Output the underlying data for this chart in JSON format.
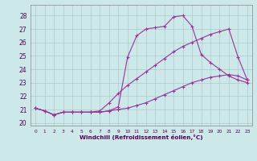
{
  "xlabel": "Windchill (Refroidissement éolien,°C)",
  "background_color": "#cce8e8",
  "grid_color": "#aacccc",
  "line_color": "#993399",
  "xlim": [
    -0.5,
    23.5
  ],
  "ylim": [
    19.8,
    28.8
  ],
  "yticks": [
    20,
    21,
    22,
    23,
    24,
    25,
    26,
    27,
    28
  ],
  "xticks": [
    0,
    1,
    2,
    3,
    4,
    5,
    6,
    7,
    8,
    9,
    10,
    11,
    12,
    13,
    14,
    15,
    16,
    17,
    18,
    19,
    20,
    21,
    22,
    23
  ],
  "series": [
    {
      "x": [
        0,
        1,
        2,
        3,
        4,
        5,
        6,
        7,
        8,
        9,
        10,
        11,
        12,
        13,
        14,
        15,
        16,
        17,
        18,
        19,
        20,
        21,
        22,
        23
      ],
      "y": [
        21.1,
        20.9,
        20.6,
        20.8,
        20.8,
        20.8,
        20.8,
        20.8,
        20.9,
        21.0,
        21.1,
        21.3,
        21.5,
        21.8,
        22.1,
        22.4,
        22.7,
        23.0,
        23.2,
        23.4,
        23.5,
        23.6,
        23.5,
        23.2
      ]
    },
    {
      "x": [
        0,
        1,
        2,
        3,
        4,
        5,
        6,
        7,
        8,
        9,
        10,
        11,
        12,
        13,
        14,
        15,
        16,
        17,
        18,
        19,
        20,
        21,
        22,
        23
      ],
      "y": [
        21.1,
        20.9,
        20.6,
        20.8,
        20.8,
        20.8,
        20.8,
        20.8,
        20.9,
        21.2,
        24.9,
        26.5,
        27.0,
        27.1,
        27.2,
        27.9,
        28.0,
        27.2,
        25.1,
        24.5,
        24.0,
        23.5,
        23.2,
        23.0
      ]
    },
    {
      "x": [
        0,
        1,
        2,
        3,
        4,
        5,
        6,
        7,
        8,
        9,
        10,
        11,
        12,
        13,
        14,
        15,
        16,
        17,
        18,
        19,
        20,
        21,
        22,
        23
      ],
      "y": [
        21.1,
        20.9,
        20.6,
        20.8,
        20.8,
        20.8,
        20.8,
        20.9,
        21.5,
        22.2,
        22.8,
        23.3,
        23.8,
        24.3,
        24.8,
        25.3,
        25.7,
        26.0,
        26.3,
        26.6,
        26.8,
        27.0,
        24.9,
        23.2
      ]
    }
  ]
}
